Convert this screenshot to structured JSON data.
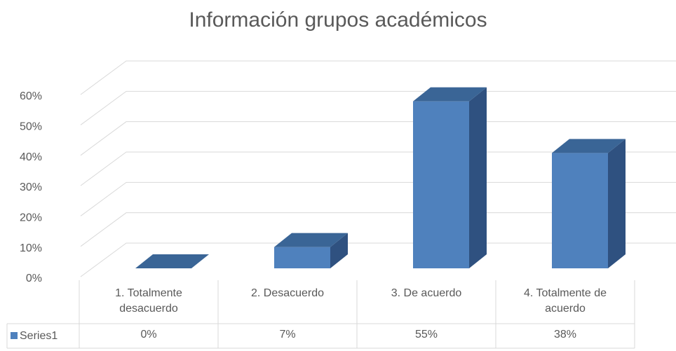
{
  "chart_data": {
    "type": "bar3d",
    "title": "Información grupos académicos",
    "categories": [
      "1. Totalmente desacuerdo",
      "2. Desacuerdo",
      "3. De acuerdo",
      "4. Totalmente de acuerdo"
    ],
    "series": [
      {
        "name": "Series1",
        "color": "#4f81bd",
        "values": [
          0,
          7,
          55,
          38
        ],
        "value_labels": [
          "0%",
          "7%",
          "55%",
          "38%"
        ]
      }
    ],
    "ylim": [
      0,
      60
    ],
    "yticks": [
      {
        "value": 0,
        "label": "0%"
      },
      {
        "value": 10,
        "label": "10%"
      },
      {
        "value": 20,
        "label": "20%"
      },
      {
        "value": 30,
        "label": "30%"
      },
      {
        "value": 40,
        "label": "40%"
      },
      {
        "value": 50,
        "label": "50%"
      },
      {
        "value": 60,
        "label": "60%"
      }
    ],
    "grid": true
  }
}
